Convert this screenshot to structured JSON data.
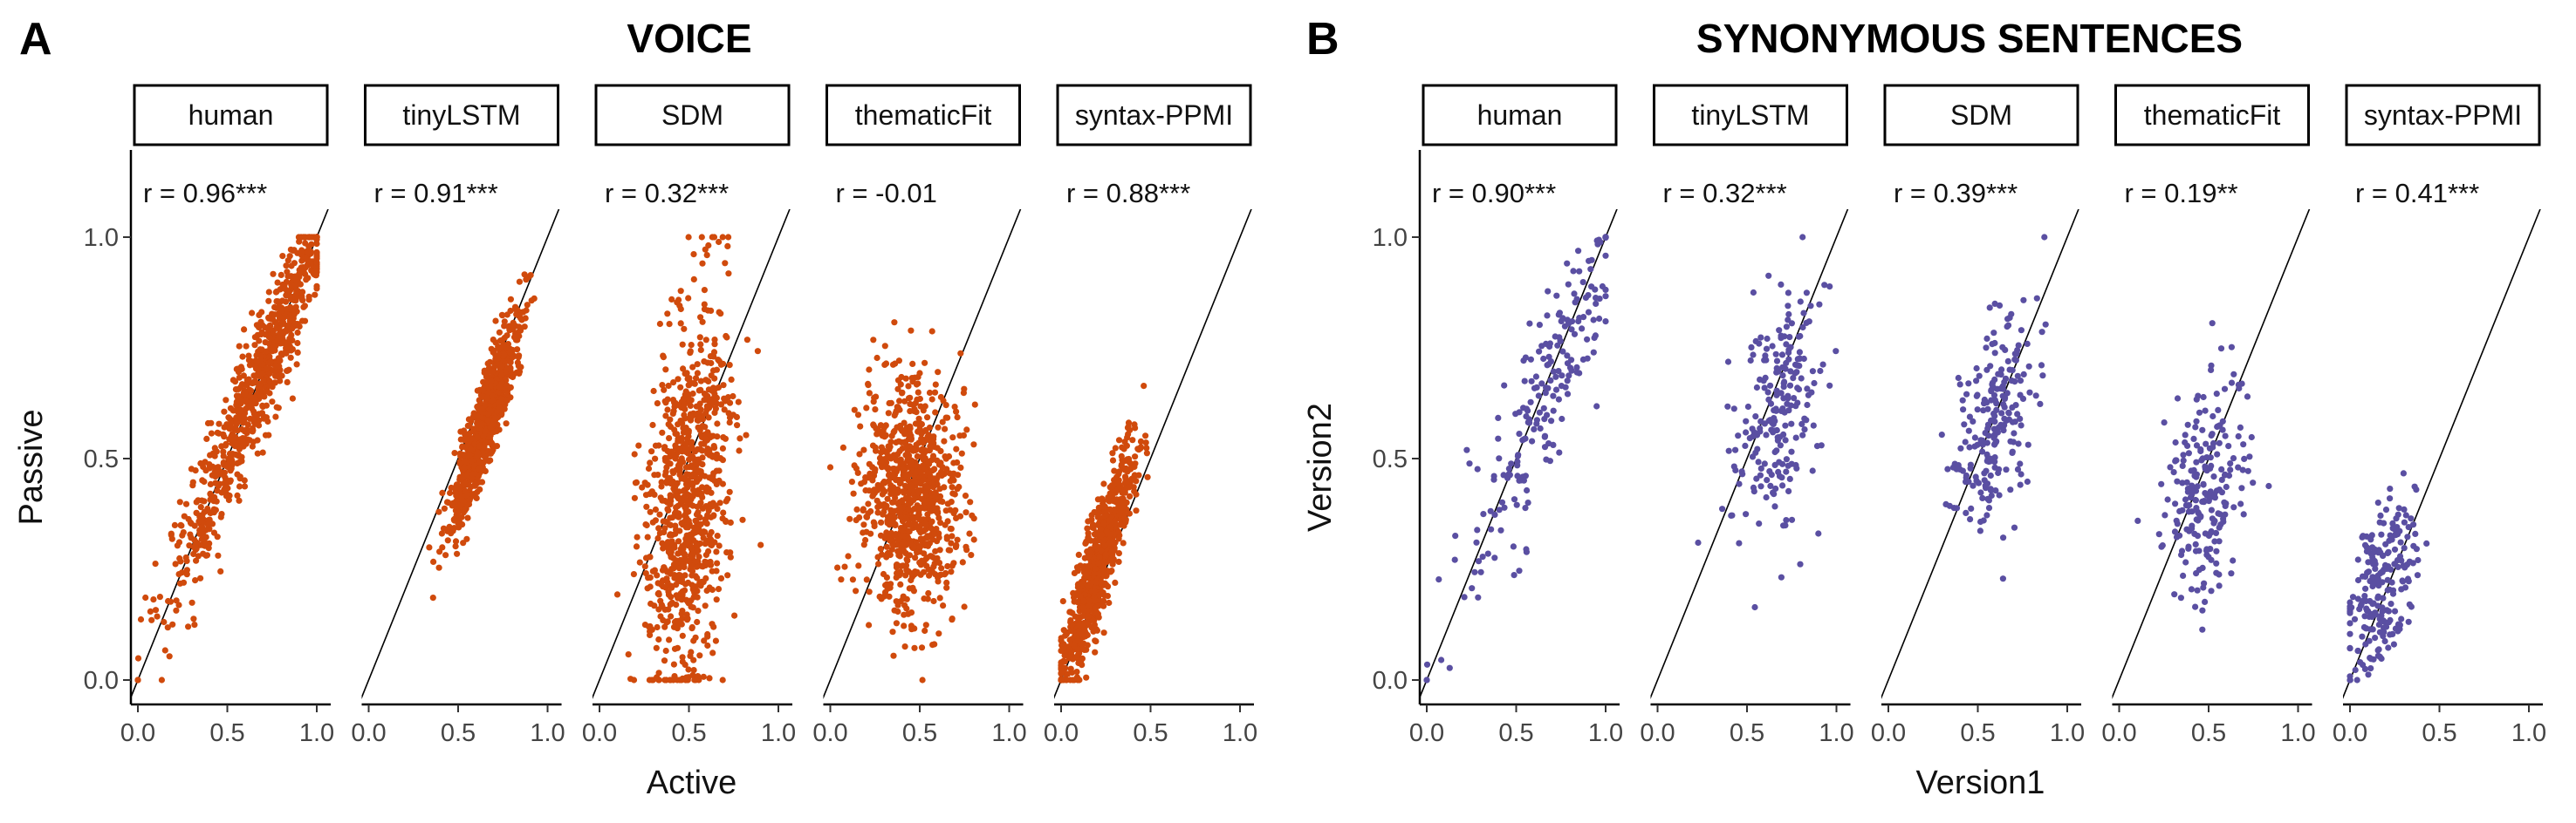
{
  "chart_data": [
    {
      "type": "scatter",
      "panel_letter": "A",
      "title": "VOICE",
      "xlabel": "Active",
      "ylabel": "Passive",
      "xlim": [
        0,
        1
      ],
      "ylim": [
        0,
        1
      ],
      "x_ticks": [
        0.0,
        0.5,
        1.0
      ],
      "y_ticks": [
        0.0,
        0.5,
        1.0
      ],
      "x_tick_labels": [
        "0.0",
        "0.5",
        "1.0"
      ],
      "y_tick_labels": [
        "0.0",
        "0.5",
        "1.0"
      ],
      "color": "#D04A0C",
      "reference_line": "y = x",
      "grid": false,
      "facets": [
        {
          "name": "human",
          "r_label": "r = 0.96***",
          "pattern": {
            "n": 850,
            "mean_x": 0.68,
            "sd_x": 0.26,
            "slope": 1.0,
            "intercept": 0.0,
            "mean_y": 0.68,
            "sd_y": 0.26,
            "r": 0.96,
            "xmin": 0.0,
            "xmax": 1.0,
            "ymin": 0.0,
            "ymax": 1.0
          }
        },
        {
          "name": "tinyLSTM",
          "r_label": "r = 0.91***",
          "pattern": {
            "n": 850,
            "mean_x": 0.65,
            "sd_x": 0.1,
            "slope": 1.0,
            "intercept": -0.07,
            "mean_y": 0.58,
            "sd_y": 0.12,
            "r": 0.91,
            "xmin": 0.1,
            "xmax": 1.0,
            "ymin": 0.0,
            "ymax": 1.0
          }
        },
        {
          "name": "SDM",
          "r_label": "r = 0.32***",
          "pattern": {
            "n": 850,
            "mean_x": 0.5,
            "sd_x": 0.12,
            "slope": 1.0,
            "intercept": 0.0,
            "mean_y": 0.42,
            "sd_y": 0.22,
            "r": 0.32,
            "xmin": 0.1,
            "xmax": 1.0,
            "ymin": 0.0,
            "ymax": 1.0
          }
        },
        {
          "name": "thematicFit",
          "r_label": "r = -0.01",
          "pattern": {
            "n": 850,
            "mean_x": 0.45,
            "sd_x": 0.14,
            "slope": 1.0,
            "intercept": 0.0,
            "mean_y": 0.42,
            "sd_y": 0.13,
            "r": -0.01,
            "xmin": 0.0,
            "xmax": 1.0,
            "ymin": 0.0,
            "ymax": 1.0
          }
        },
        {
          "name": "syntax-PPMI",
          "r_label": "r = 0.88***",
          "pattern": {
            "n": 850,
            "mean_x": 0.2,
            "sd_x": 0.1,
            "slope": 1.0,
            "intercept": 0.0,
            "mean_y": 0.25,
            "sd_y": 0.13,
            "r": 0.88,
            "xmin": 0.0,
            "xmax": 1.0,
            "ymin": 0.0,
            "ymax": 1.0
          }
        }
      ]
    },
    {
      "type": "scatter",
      "panel_letter": "B",
      "title": "SYNONYMOUS SENTENCES",
      "xlabel": "Version1",
      "ylabel": "Version2",
      "xlim": [
        0,
        1
      ],
      "ylim": [
        0,
        1
      ],
      "x_ticks": [
        0.0,
        0.5,
        1.0
      ],
      "y_ticks": [
        0.0,
        0.5,
        1.0
      ],
      "x_tick_labels": [
        "0.0",
        "0.5",
        "1.0"
      ],
      "y_tick_labels": [
        "0.0",
        "0.5",
        "1.0"
      ],
      "color": "#5A4FA2",
      "reference_line": "y = x",
      "grid": false,
      "facets": [
        {
          "name": "human",
          "r_label": "r = 0.90***",
          "pattern": {
            "n": 220,
            "mean_x": 0.7,
            "sd_x": 0.25,
            "slope": 1.0,
            "intercept": 0.0,
            "mean_y": 0.68,
            "sd_y": 0.25,
            "r": 0.9,
            "xmin": 0.0,
            "xmax": 1.0,
            "ymin": 0.0,
            "ymax": 1.0
          }
        },
        {
          "name": "tinyLSTM",
          "r_label": "r = 0.32***",
          "pattern": {
            "n": 220,
            "mean_x": 0.68,
            "sd_x": 0.12,
            "slope": 1.0,
            "intercept": 0.0,
            "mean_y": 0.62,
            "sd_y": 0.14,
            "r": 0.32,
            "xmin": 0.2,
            "xmax": 1.0,
            "ymin": 0.1,
            "ymax": 1.0
          }
        },
        {
          "name": "SDM",
          "r_label": "r = 0.39***",
          "pattern": {
            "n": 220,
            "mean_x": 0.6,
            "sd_x": 0.12,
            "slope": 1.0,
            "intercept": 0.0,
            "mean_y": 0.58,
            "sd_y": 0.13,
            "r": 0.39,
            "xmin": 0.2,
            "xmax": 1.0,
            "ymin": 0.1,
            "ymax": 1.0
          }
        },
        {
          "name": "thematicFit",
          "r_label": "r = 0.19**",
          "pattern": {
            "n": 220,
            "mean_x": 0.48,
            "sd_x": 0.12,
            "slope": 1.0,
            "intercept": 0.0,
            "mean_y": 0.43,
            "sd_y": 0.13,
            "r": 0.19,
            "xmin": 0.1,
            "xmax": 1.0,
            "ymin": 0.05,
            "ymax": 1.0
          }
        },
        {
          "name": "syntax-PPMI",
          "r_label": "r = 0.41***",
          "pattern": {
            "n": 220,
            "mean_x": 0.17,
            "sd_x": 0.1,
            "slope": 1.0,
            "intercept": 0.0,
            "mean_y": 0.2,
            "sd_y": 0.1,
            "r": 0.41,
            "xmin": 0.0,
            "xmax": 1.0,
            "ymin": 0.0,
            "ymax": 1.0
          }
        }
      ]
    }
  ]
}
